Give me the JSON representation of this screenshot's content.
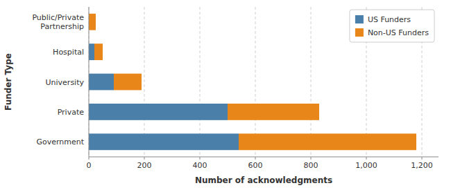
{
  "chart_data": {
    "type": "bar",
    "orientation": "horizontal",
    "stacked": true,
    "categories": [
      "Government",
      "Private",
      "University",
      "Hospital",
      "Public/Private\nPartnership"
    ],
    "series": [
      {
        "name": "US Funders",
        "color": "#4a7faa",
        "values": [
          540,
          500,
          90,
          20,
          0
        ]
      },
      {
        "name": "Non-US Funders",
        "color": "#e8861a",
        "values": [
          640,
          330,
          100,
          30,
          25
        ]
      }
    ],
    "x_label": "Number of acknowledgments",
    "y_label": "Funder Type",
    "xlim": [
      0,
      1260
    ],
    "xticks": [
      0,
      200,
      400,
      600,
      800,
      {
        "value": 1000,
        "label": "1,000"
      },
      {
        "value": 1200,
        "label": "1,200"
      }
    ],
    "grid": true,
    "legend": "upper right"
  }
}
